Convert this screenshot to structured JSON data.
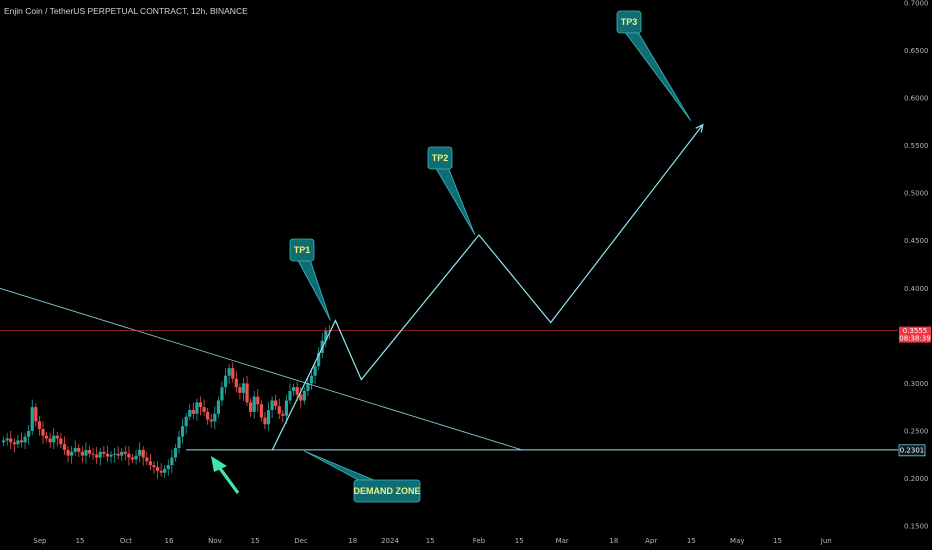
{
  "chart_data": {
    "type": "candlestick",
    "title": "Enjin Coin / TetherUS PERPETUAL CONTRACT, 12h, BINANCE",
    "ylim": [
      0.15,
      0.7
    ],
    "y_scale": "linear",
    "x_tick_labels": [
      "Sep",
      "15",
      "Oct",
      "16",
      "Nov",
      "15",
      "Dec",
      "18",
      "2024",
      "15",
      "Feb",
      "15",
      "Mar",
      "18",
      "Apr",
      "15",
      "May",
      "15",
      "Jun"
    ],
    "y_tick_labels": [
      "0.7000",
      "0.6500",
      "0.6000",
      "0.5500",
      "0.5000",
      "0.4500",
      "0.4000",
      "0.3500",
      "0.3000",
      "0.2500",
      "0.2000",
      "0.1500"
    ],
    "last_price": {
      "value": "0.3555",
      "countdown": "08:38:39",
      "color": "#f23645"
    },
    "demand_level": {
      "value": "0.2301",
      "color": "#6fd6e8"
    },
    "series": [
      {
        "values": [
          0.24,
          0.242,
          0.238,
          0.236,
          0.24,
          0.238,
          0.244,
          0.25,
          0.275,
          0.26,
          0.252,
          0.245,
          0.242,
          0.238,
          0.245,
          0.242,
          0.236,
          0.23,
          0.224,
          0.228,
          0.232,
          0.228,
          0.224,
          0.23,
          0.226,
          0.225,
          0.222,
          0.228,
          0.226,
          0.223,
          0.225,
          0.226,
          0.224,
          0.228,
          0.226,
          0.222,
          0.22,
          0.224,
          0.23,
          0.222,
          0.218,
          0.214,
          0.212,
          0.208,
          0.206,
          0.21,
          0.214,
          0.222,
          0.232,
          0.244,
          0.255,
          0.265,
          0.272,
          0.268,
          0.28,
          0.275,
          0.27,
          0.262,
          0.26,
          0.268,
          0.282,
          0.296,
          0.308,
          0.316,
          0.305,
          0.296,
          0.29,
          0.3,
          0.28,
          0.27,
          0.286,
          0.278,
          0.264,
          0.257,
          0.272,
          0.282,
          0.276,
          0.268,
          0.266,
          0.282,
          0.292,
          0.296,
          0.288,
          0.282,
          0.292,
          0.3,
          0.308,
          0.318,
          0.332,
          0.345,
          0.355,
          0.3555
        ]
      }
    ],
    "annotations": {
      "tp_labels": [
        "TP1",
        "TP2",
        "TP3"
      ],
      "demand_label": "DEMAND ZONE",
      "projection_path": [
        {
          "date": "Nov 21",
          "price": 0.23
        },
        {
          "date": "Dec 13",
          "price": 0.366
        },
        {
          "date": "Dec 22",
          "price": 0.304
        },
        {
          "date": "Feb 01",
          "price": 0.456
        },
        {
          "date": "Feb 26",
          "price": 0.364
        },
        {
          "date": "Apr 19",
          "price": 0.572
        }
      ],
      "trendline": {
        "start": {
          "date": "Aug 18",
          "price": 0.4
        },
        "end": {
          "date": "Feb 16",
          "price": 0.23
        }
      },
      "demand_zone_line": {
        "from_date": "Oct 22",
        "price": 0.2301
      }
    },
    "colors": {
      "up": "#26a69a",
      "down": "#ef5350",
      "lines": "#8ee6f2",
      "callout_fill": "#0e6e74",
      "callout_border": "#3fb6bf",
      "tp_text": "#f5ef7a",
      "background": "#000000"
    }
  }
}
